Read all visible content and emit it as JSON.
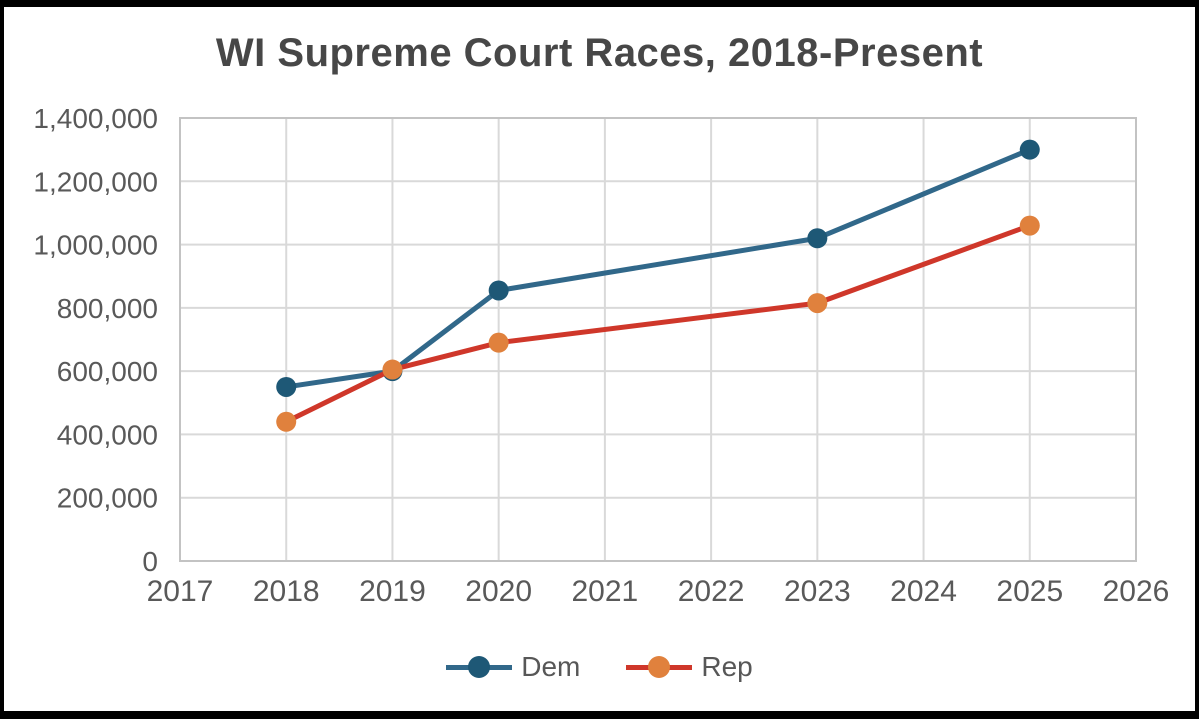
{
  "chart_data": {
    "type": "line",
    "title": "WI Supreme Court Races, 2018-Present",
    "x": [
      2018,
      2019,
      2020,
      2023,
      2025
    ],
    "series": [
      {
        "name": "Dem",
        "values": [
          550000,
          600000,
          855000,
          1020000,
          1300000
        ],
        "line_color": "#31688a",
        "marker_color": "#1e5876"
      },
      {
        "name": "Rep",
        "values": [
          440000,
          605000,
          690000,
          815000,
          1060000
        ],
        "line_color": "#cf372a",
        "marker_color": "#e0813d"
      }
    ],
    "xlabel": "",
    "ylabel": "",
    "xlim": [
      2017,
      2026
    ],
    "ylim": [
      0,
      1400000
    ],
    "x_tick_labels": [
      "2017",
      "2018",
      "2019",
      "2020",
      "2021",
      "2022",
      "2023",
      "2024",
      "2025",
      "2026"
    ],
    "y_tick_labels": [
      "0",
      "200,000",
      "400,000",
      "600,000",
      "800,000",
      "1,000,000",
      "1,200,000",
      "1,400,000"
    ],
    "grid": true,
    "legend_position": "bottom",
    "colors": {
      "axis_text": "#595959",
      "title_text": "#474747",
      "gridline": "#d9d9d9",
      "plot_border": "#c3c3c3",
      "frame_border": "#000000",
      "background": "#ffffff"
    }
  }
}
